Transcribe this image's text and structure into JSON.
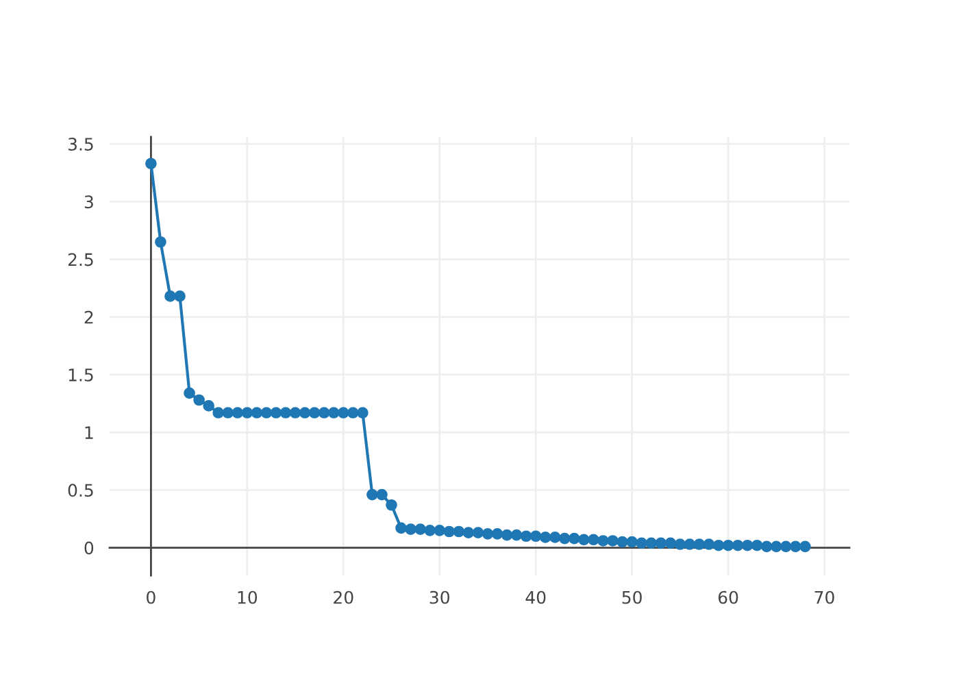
{
  "chart_data": {
    "type": "line",
    "x": [
      0,
      1,
      2,
      3,
      4,
      5,
      6,
      7,
      8,
      9,
      10,
      11,
      12,
      13,
      14,
      15,
      16,
      17,
      18,
      19,
      20,
      21,
      22,
      23,
      24,
      25,
      26,
      27,
      28,
      29,
      30,
      31,
      32,
      33,
      34,
      35,
      36,
      37,
      38,
      39,
      40,
      41,
      42,
      43,
      44,
      45,
      46,
      47,
      48,
      49,
      50,
      51,
      52,
      53,
      54,
      55,
      56,
      57,
      58,
      59,
      60,
      61,
      62,
      63,
      64,
      65,
      66,
      67,
      68
    ],
    "series": [
      {
        "color": "#1f77b4",
        "values": [
          3.33,
          2.65,
          2.18,
          2.18,
          1.34,
          1.28,
          1.23,
          1.17,
          1.17,
          1.17,
          1.17,
          1.17,
          1.17,
          1.17,
          1.17,
          1.17,
          1.17,
          1.17,
          1.17,
          1.17,
          1.17,
          1.17,
          1.17,
          0.46,
          0.46,
          0.37,
          0.17,
          0.16,
          0.16,
          0.15,
          0.15,
          0.14,
          0.14,
          0.13,
          0.13,
          0.12,
          0.12,
          0.11,
          0.11,
          0.1,
          0.1,
          0.09,
          0.09,
          0.08,
          0.08,
          0.07,
          0.07,
          0.06,
          0.06,
          0.05,
          0.05,
          0.04,
          0.04,
          0.04,
          0.04,
          0.03,
          0.03,
          0.03,
          0.03,
          0.02,
          0.02,
          0.02,
          0.02,
          0.02,
          0.01,
          0.01,
          0.01,
          0.01,
          0.01
        ]
      }
    ],
    "xlim": [
      -4.3,
      72.6
    ],
    "ylim": [
      -0.24,
      3.56
    ],
    "xticks": [
      0,
      10,
      20,
      30,
      40,
      50,
      60,
      70
    ],
    "yticks": [
      0,
      0.5,
      1,
      1.5,
      2,
      2.5,
      3,
      3.5
    ],
    "grid": true,
    "marker": "circle",
    "line_style": "solid"
  }
}
